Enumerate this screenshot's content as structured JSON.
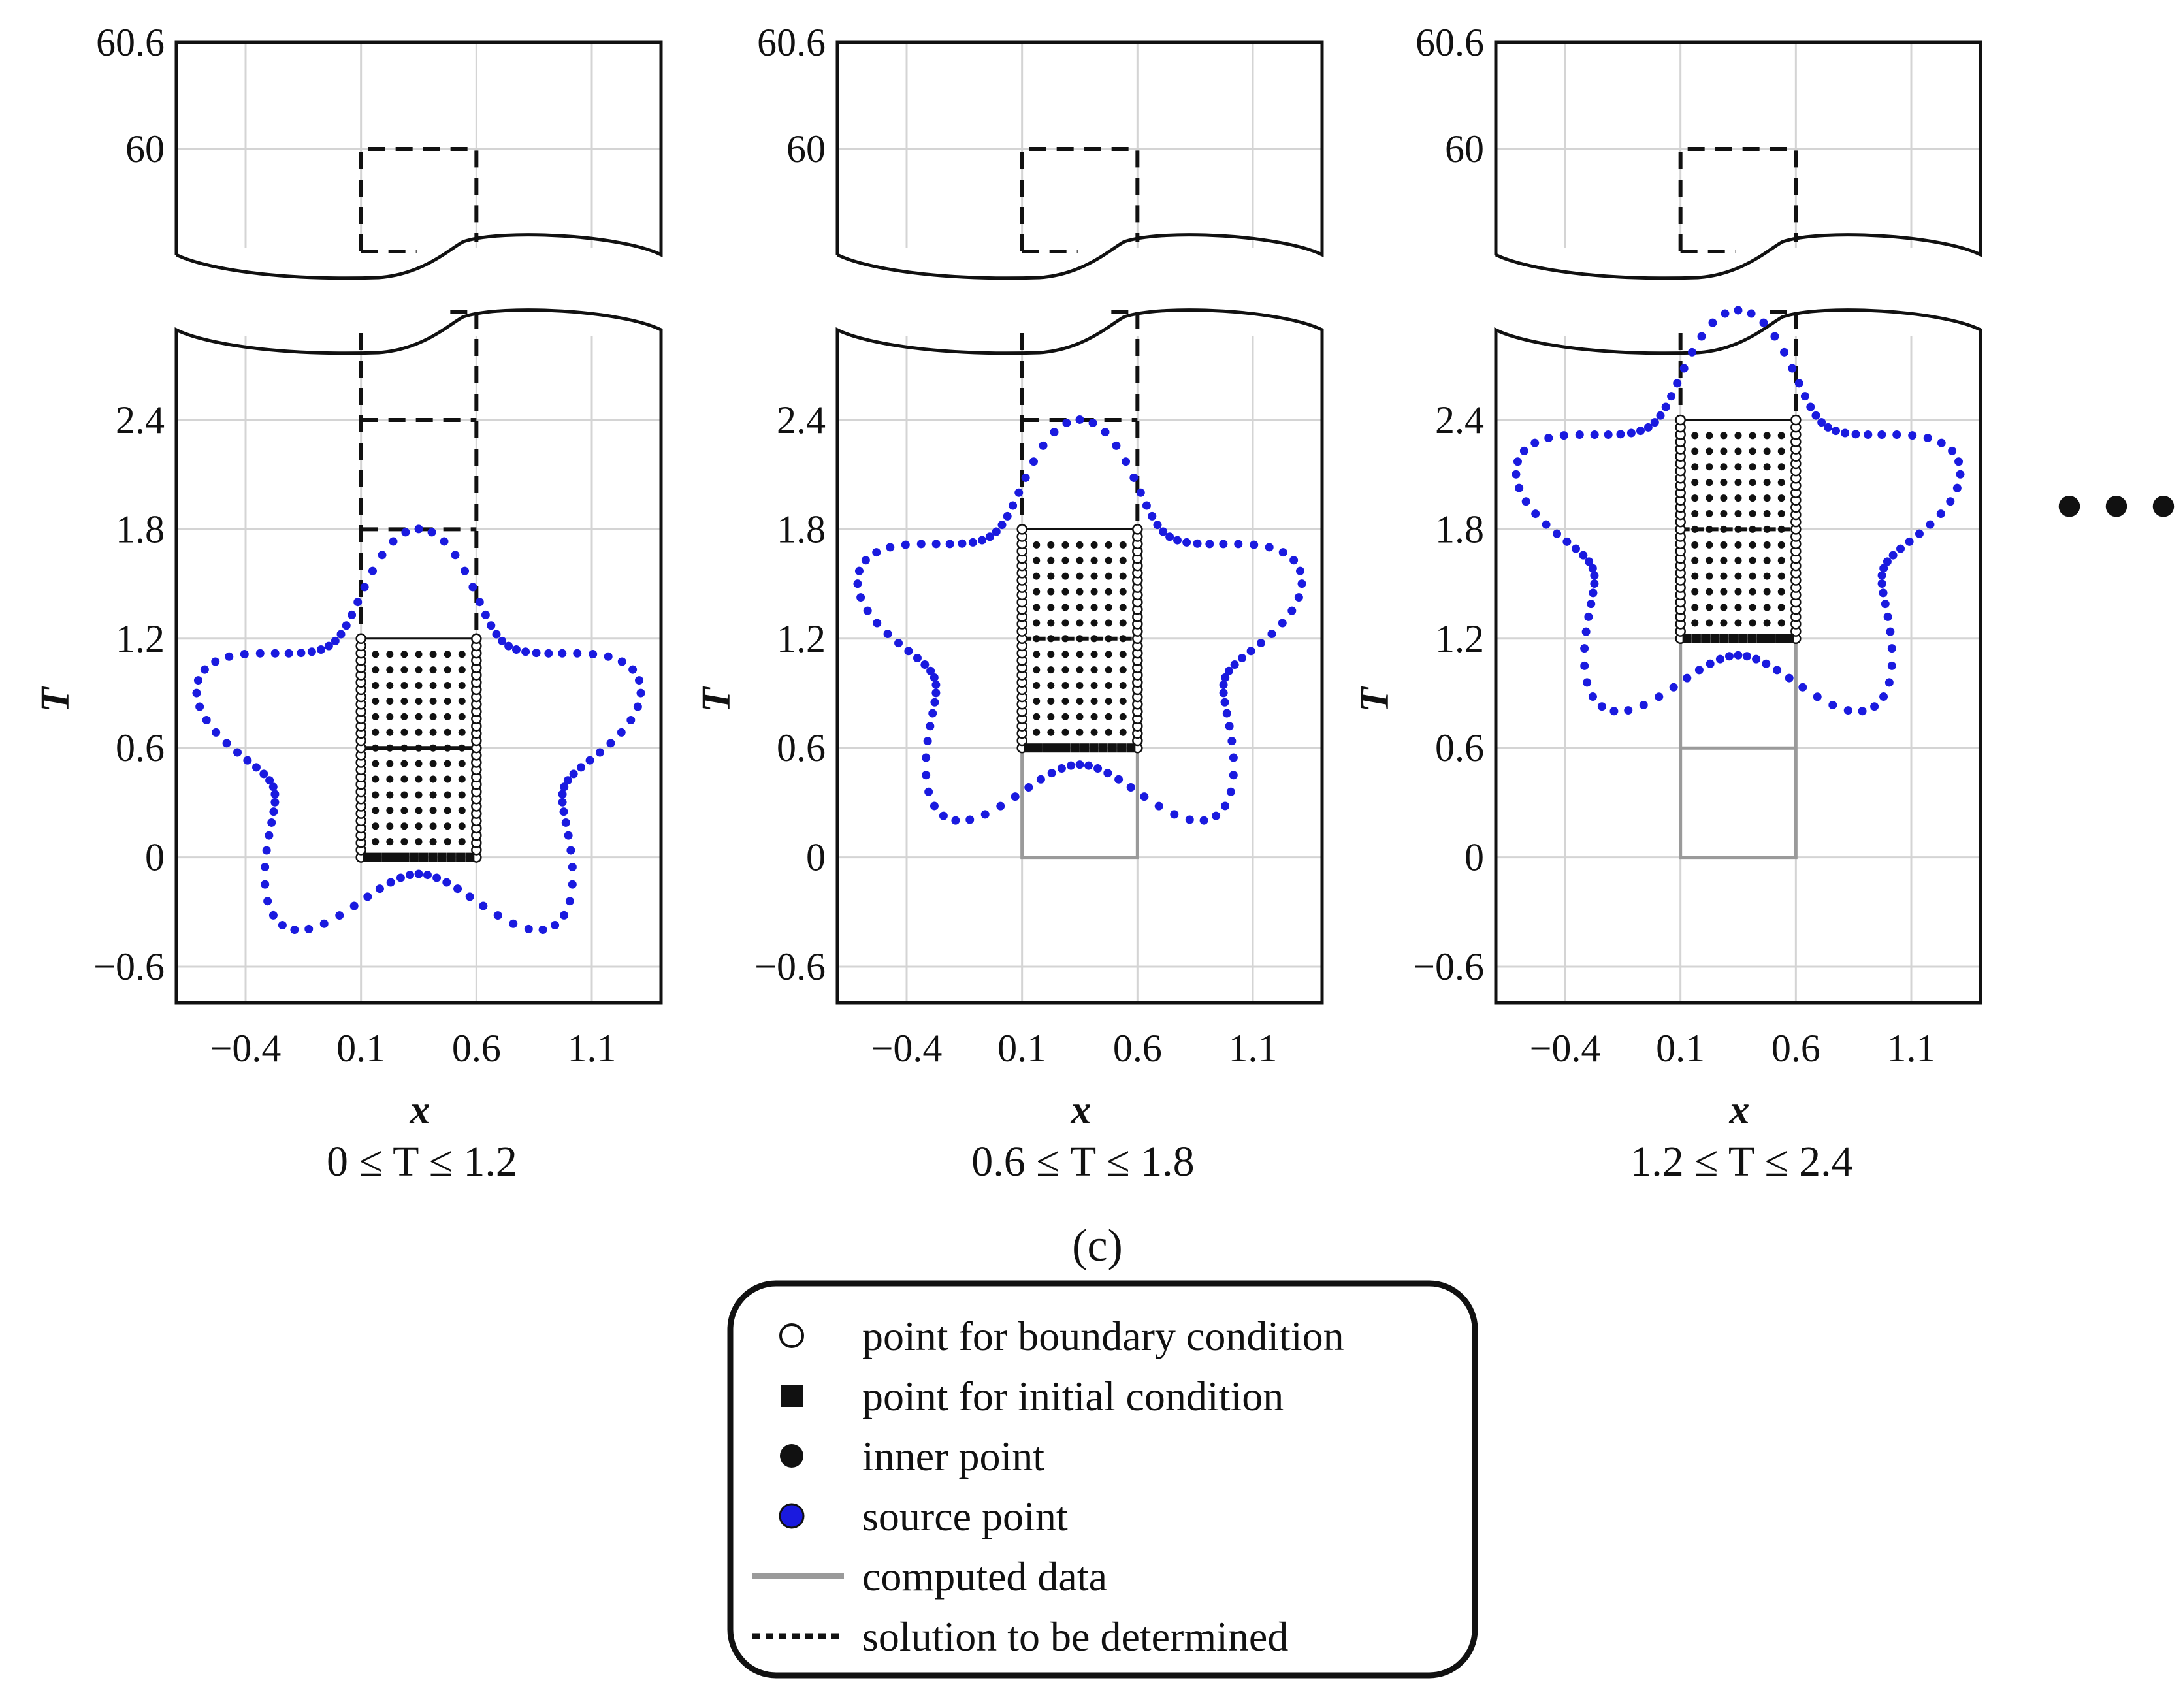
{
  "chart_data": {
    "type": "scatter",
    "panel_tag": "(c)",
    "continuation": "• • •",
    "x_ticks": [
      -0.4,
      0.1,
      0.6,
      1.1
    ],
    "x_tick_labels": [
      "−0.4",
      "0.1",
      "0.6",
      "1.1"
    ],
    "y_ticks_lower": [
      -0.6,
      0,
      0.6,
      1.2,
      1.8,
      2.4
    ],
    "y_tick_labels_lower": [
      "−0.6",
      "0",
      "0.6",
      "1.2",
      "1.8",
      "2.4"
    ],
    "y_ticks_upper": [
      60,
      60.6
    ],
    "y_tick_labels_upper": [
      "60",
      "60.6"
    ],
    "xlabel": "x",
    "ylabel": "T",
    "xlim": [
      -0.7,
      1.4
    ],
    "ylim_lower": [
      -0.8,
      3.0
    ],
    "ylim_upper": [
      59.4,
      60.6
    ],
    "axis_break": true,
    "grid": true,
    "domain_x": [
      0.1,
      0.6
    ],
    "panels": [
      {
        "range_label": "0 ≤ T ≤ 1.2",
        "t_min": 0.0,
        "t_max": 1.2,
        "source_center": [
          0.35,
          0.6
        ],
        "source_rotation_deg": 0
      },
      {
        "range_label": "0.6 ≤ T ≤ 1.8",
        "t_min": 0.6,
        "t_max": 1.8,
        "source_center": [
          0.35,
          1.2
        ],
        "source_rotation_deg": 0
      },
      {
        "range_label": "1.2 ≤ T ≤ 2.4",
        "t_min": 1.2,
        "t_max": 2.4,
        "source_center": [
          0.35,
          1.8
        ],
        "source_rotation_deg": 0
      }
    ],
    "legend": [
      {
        "marker": "open-circle",
        "label": "point for boundary condition"
      },
      {
        "marker": "filled-square",
        "label": "point for initial condition"
      },
      {
        "marker": "filled-circle",
        "label": "inner  point"
      },
      {
        "marker": "blue-circle",
        "label": "source point"
      },
      {
        "marker": "gray-line",
        "label": "computed data"
      },
      {
        "marker": "dotted-line",
        "label": "solution to be determined"
      }
    ],
    "legend_position": "bottom-center",
    "colors": {
      "source": "#1a1adf",
      "computed": "#9a9a9a",
      "grid": "#d4d4d4",
      "ink": "#111111"
    }
  }
}
